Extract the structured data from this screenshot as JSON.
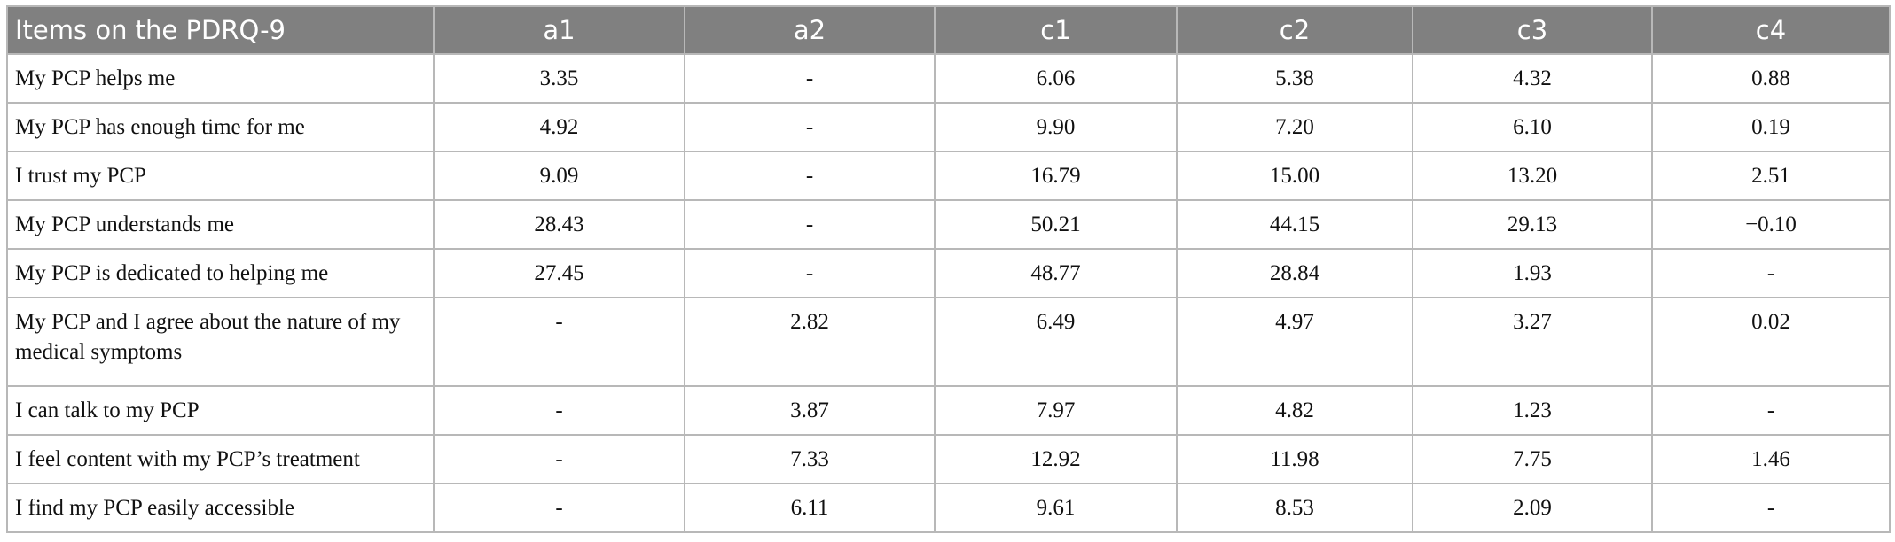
{
  "table": {
    "header": [
      "Items on the PDRQ-9",
      "a1",
      "a2",
      "c1",
      "c2",
      "c3",
      "c4"
    ],
    "rows": [
      [
        "My PCP helps me",
        "3.35",
        "-",
        "6.06",
        "5.38",
        "4.32",
        "0.88"
      ],
      [
        "My PCP has enough time for me",
        "4.92",
        "-",
        "9.90",
        "7.20",
        "6.10",
        "0.19"
      ],
      [
        "I trust my PCP",
        "9.09",
        "-",
        "16.79",
        "15.00",
        "13.20",
        "2.51"
      ],
      [
        "My PCP understands me",
        "28.43",
        "-",
        "50.21",
        "44.15",
        "29.13",
        "−0.10"
      ],
      [
        "My PCP is dedicated to helping me",
        "27.45",
        "-",
        "48.77",
        "28.84",
        "1.93",
        "-"
      ],
      [
        "My PCP and I agree about the nature of my medical symptoms",
        "-",
        "2.82",
        "6.49",
        "4.97",
        "3.27",
        "0.02"
      ],
      [
        "I can talk to my PCP",
        "-",
        "3.87",
        "7.97",
        "4.82",
        "1.23",
        "-"
      ],
      [
        "I feel content with my PCP’s treatment",
        "-",
        "7.33",
        "12.92",
        "11.98",
        "7.75",
        "1.46"
      ],
      [
        "I find my PCP easily accessible",
        "-",
        "6.11",
        "9.61",
        "8.53",
        "2.09",
        "-"
      ]
    ]
  }
}
